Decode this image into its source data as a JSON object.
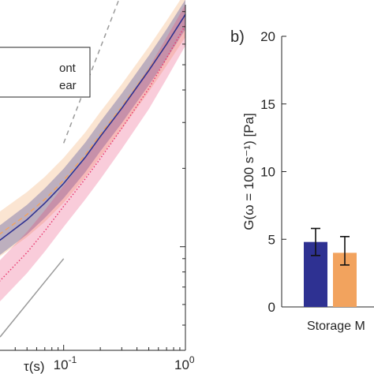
{
  "figure": {
    "panel_b_label": "b)"
  },
  "chart_data": [
    {
      "panel": "a",
      "type": "line",
      "xscale": "log",
      "yscale": "log",
      "xlim": [
        0.03,
        1.0
      ],
      "xlabel": "τ(s)",
      "xticks": [
        {
          "value": 0.1,
          "base": "10",
          "exp": "-1"
        },
        {
          "value": 1.0,
          "base": "10",
          "exp": "0"
        }
      ],
      "legend": {
        "placement": "top-left",
        "entries": [
          "ont",
          "ear"
        ]
      },
      "series": [
        {
          "color": "#f2a35e",
          "style": "dashed",
          "x": [
            0.02,
            0.03,
            0.05,
            0.07,
            0.1,
            0.15,
            0.2,
            0.3,
            0.5,
            0.7,
            1.0
          ],
          "y": [
            1.0,
            1.12,
            1.33,
            1.52,
            1.8,
            2.25,
            2.7,
            3.45,
            4.8,
            6.05,
            7.8
          ]
        },
        {
          "color": "#2e3192",
          "style": "solid",
          "x": [
            0.02,
            0.03,
            0.05,
            0.07,
            0.1,
            0.15,
            0.2,
            0.3,
            0.5,
            0.7,
            1.0
          ],
          "y": [
            0.95,
            1.06,
            1.27,
            1.47,
            1.75,
            2.2,
            2.65,
            3.4,
            4.75,
            6.0,
            7.8
          ]
        },
        {
          "color": "#e8336b",
          "style": "dotted",
          "x": [
            0.02,
            0.03,
            0.05,
            0.07,
            0.1,
            0.15,
            0.2,
            0.3,
            0.5,
            0.7,
            1.0
          ],
          "y": [
            0.62,
            0.74,
            0.95,
            1.15,
            1.43,
            1.82,
            2.18,
            2.85,
            4.05,
            5.3,
            7.1
          ]
        }
      ],
      "reference_lines": [
        {
          "style": "dashed",
          "color": "#9a9a9a",
          "x": [
            0.1,
            0.3
          ],
          "y": [
            2.5,
            9.5
          ]
        },
        {
          "style": "solid",
          "color": "#9a9a9a",
          "x": [
            0.03,
            0.1
          ],
          "y": [
            0.45,
            0.9
          ]
        }
      ]
    },
    {
      "panel": "b",
      "type": "bar",
      "ylabel": "G(ω = 100 s⁻¹)  [Pa]",
      "ylim": [
        0,
        20
      ],
      "yticks": [
        0,
        5,
        10,
        15,
        20
      ],
      "categories": [
        "Storage M"
      ],
      "bars": [
        {
          "value": 4.8,
          "err_low": 3.8,
          "err_high": 5.8,
          "color": "#2e3192"
        },
        {
          "value": 4.0,
          "err_low": 3.1,
          "err_high": 5.2,
          "color": "#f2a35e"
        }
      ]
    }
  ]
}
